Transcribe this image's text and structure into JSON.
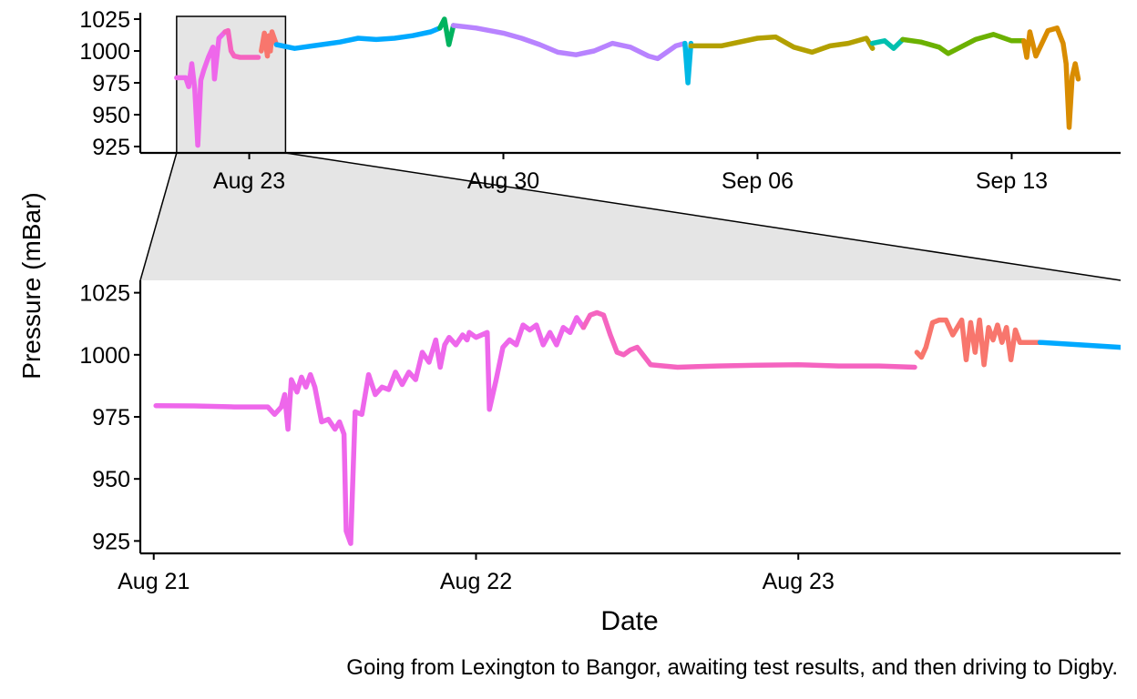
{
  "chart_data": {
    "type": "line",
    "ylabel": "Pressure (mBar)",
    "xlabel": "Date",
    "caption": "Going from Lexington to Bangor, awaiting test results, and then driving to Digby.",
    "grid": false,
    "legend": "none",
    "colors": {
      "magenta": "#EE67EB",
      "pink": "#F564C0",
      "salmon": "#F8766D",
      "skyblue": "#00A9FF",
      "green": "#00B35F",
      "lavender": "#B883FF",
      "cyan": "#00B8E5",
      "olive": "#B3A000",
      "teal": "#00C0AF",
      "lime": "#6BB100",
      "orange": "#D98C00",
      "zoombox": "#E5E5E5"
    },
    "overview": {
      "x_range": [
        "2024-08-20",
        "2024-09-16"
      ],
      "y_range": [
        920,
        1030
      ],
      "x_ticks": [
        {
          "date": "2024-08-23",
          "label": "Aug 23"
        },
        {
          "date": "2024-08-30",
          "label": "Aug 30"
        },
        {
          "date": "2024-09-06",
          "label": "Sep 06"
        },
        {
          "date": "2024-09-13",
          "label": "Sep 13"
        }
      ],
      "y_ticks": [
        925,
        950,
        975,
        1000,
        1025
      ],
      "zoom_range": [
        "2024-08-21",
        "2024-08-24"
      ],
      "series": [
        {
          "color": "magenta",
          "points": [
            [
              "2024-08-21 00:00",
              979
            ],
            [
              "2024-08-21 06:00",
              979
            ],
            [
              "2024-08-21 08:00",
              972
            ],
            [
              "2024-08-21 10:00",
              990
            ],
            [
              "2024-08-21 12:00",
              970
            ],
            [
              "2024-08-21 14:00",
              926
            ],
            [
              "2024-08-21 16:00",
              977
            ],
            [
              "2024-08-21 18:00",
              985
            ],
            [
              "2024-08-21 21:00",
              995
            ],
            [
              "2024-08-22 00:00",
              1003
            ],
            [
              "2024-08-22 01:00",
              978
            ],
            [
              "2024-08-22 04:00",
              1010
            ],
            [
              "2024-08-22 08:00",
              1015
            ]
          ]
        },
        {
          "color": "pink",
          "points": [
            [
              "2024-08-22 08:00",
              1015
            ],
            [
              "2024-08-22 10:00",
              1016
            ],
            [
              "2024-08-22 12:00",
              1000
            ],
            [
              "2024-08-22 14:00",
              996
            ],
            [
              "2024-08-22 18:00",
              995
            ],
            [
              "2024-08-23 00:00",
              995
            ],
            [
              "2024-08-23 06:00",
              995
            ]
          ]
        },
        {
          "color": "salmon",
          "points": [
            [
              "2024-08-23 08:00",
              1000
            ],
            [
              "2024-08-23 10:00",
              1014
            ],
            [
              "2024-08-23 12:00",
              996
            ],
            [
              "2024-08-23 13:00",
              1012
            ],
            [
              "2024-08-23 14:00",
              1000
            ],
            [
              "2024-08-23 15:00",
              1015
            ],
            [
              "2024-08-23 18:00",
              1005
            ]
          ]
        },
        {
          "color": "skyblue",
          "points": [
            [
              "2024-08-23 18:00",
              1005
            ],
            [
              "2024-08-24 06:00",
              1002
            ],
            [
              "2024-08-24 18:00",
              1004
            ],
            [
              "2024-08-25 12:00",
              1007
            ],
            [
              "2024-08-26 00:00",
              1010
            ],
            [
              "2024-08-26 12:00",
              1009
            ],
            [
              "2024-08-27 00:00",
              1010
            ],
            [
              "2024-08-27 12:00",
              1012
            ],
            [
              "2024-08-28 00:00",
              1015
            ],
            [
              "2024-08-28 06:00",
              1018
            ]
          ]
        },
        {
          "color": "green",
          "points": [
            [
              "2024-08-28 06:00",
              1018
            ],
            [
              "2024-08-28 09:00",
              1025
            ],
            [
              "2024-08-28 12:00",
              1005
            ],
            [
              "2024-08-28 15:00",
              1020
            ]
          ]
        },
        {
          "color": "lavender",
          "points": [
            [
              "2024-08-28 15:00",
              1020
            ],
            [
              "2024-08-29 06:00",
              1018
            ],
            [
              "2024-08-30 00:00",
              1014
            ],
            [
              "2024-08-30 12:00",
              1010
            ],
            [
              "2024-08-31 00:00",
              1005
            ],
            [
              "2024-08-31 12:00",
              999
            ],
            [
              "2024-09-01 00:00",
              997
            ],
            [
              "2024-09-01 12:00",
              1000
            ],
            [
              "2024-09-02 00:00",
              1006
            ],
            [
              "2024-09-02 12:00",
              1003
            ],
            [
              "2024-09-03 00:00",
              996
            ],
            [
              "2024-09-03 06:00",
              994
            ],
            [
              "2024-09-03 18:00",
              1004
            ],
            [
              "2024-09-04 00:00",
              1006
            ]
          ]
        },
        {
          "color": "cyan",
          "points": [
            [
              "2024-09-04 00:00",
              1006
            ],
            [
              "2024-09-04 02:00",
              975
            ],
            [
              "2024-09-04 04:00",
              1006
            ]
          ]
        },
        {
          "color": "olive",
          "points": [
            [
              "2024-09-04 04:00",
              1004
            ],
            [
              "2024-09-05 00:00",
              1004
            ],
            [
              "2024-09-06 00:00",
              1010
            ],
            [
              "2024-09-06 12:00",
              1011
            ],
            [
              "2024-09-07 00:00",
              1003
            ],
            [
              "2024-09-07 12:00",
              999
            ],
            [
              "2024-09-08 00:00",
              1004
            ],
            [
              "2024-09-08 12:00",
              1006
            ],
            [
              "2024-09-09 00:00",
              1010
            ],
            [
              "2024-09-09 04:00",
              1002
            ]
          ]
        },
        {
          "color": "teal",
          "points": [
            [
              "2024-09-09 04:00",
              1006
            ],
            [
              "2024-09-09 12:00",
              1008
            ],
            [
              "2024-09-09 18:00",
              1002
            ],
            [
              "2024-09-10 00:00",
              1009
            ]
          ]
        },
        {
          "color": "lime",
          "points": [
            [
              "2024-09-10 00:00",
              1009
            ],
            [
              "2024-09-10 12:00",
              1007
            ],
            [
              "2024-09-11 00:00",
              1003
            ],
            [
              "2024-09-11 06:00",
              998
            ],
            [
              "2024-09-12 00:00",
              1009
            ],
            [
              "2024-09-12 12:00",
              1013
            ],
            [
              "2024-09-13 00:00",
              1008
            ],
            [
              "2024-09-13 08:00",
              1008
            ]
          ]
        },
        {
          "color": "orange",
          "points": [
            [
              "2024-09-13 08:00",
              1008
            ],
            [
              "2024-09-13 10:00",
              995
            ],
            [
              "2024-09-13 12:00",
              1015
            ],
            [
              "2024-09-13 16:00",
              996
            ],
            [
              "2024-09-14 00:00",
              1016
            ],
            [
              "2024-09-14 06:00",
              1018
            ],
            [
              "2024-09-14 10:00",
              1006
            ],
            [
              "2024-09-14 12:00",
              990
            ],
            [
              "2024-09-14 14:00",
              940
            ],
            [
              "2024-09-14 16:00",
              980
            ],
            [
              "2024-09-14 18:00",
              990
            ],
            [
              "2024-09-14 20:00",
              978
            ]
          ]
        }
      ]
    },
    "detail": {
      "x_range": [
        "2024-08-20 23:00",
        "2024-08-24 00:00"
      ],
      "y_range": [
        920,
        1030
      ],
      "x_ticks": [
        {
          "date": "2024-08-21",
          "label": "Aug 21"
        },
        {
          "date": "2024-08-22",
          "label": "Aug 22"
        },
        {
          "date": "2024-08-23",
          "label": "Aug 23"
        }
      ],
      "y_ticks": [
        925,
        950,
        975,
        1000,
        1025
      ],
      "series": [
        {
          "color": "magenta",
          "points": [
            [
              "2024-08-21 00:10",
              979.5
            ],
            [
              "2024-08-21 03:00",
              979.4
            ],
            [
              "2024-08-21 06:00",
              979.0
            ],
            [
              "2024-08-21 08:30",
              979.0
            ],
            [
              "2024-08-21 09:00",
              976
            ],
            [
              "2024-08-21 09:30",
              979
            ],
            [
              "2024-08-21 09:45",
              984
            ],
            [
              "2024-08-21 10:00",
              970
            ],
            [
              "2024-08-21 10:15",
              990
            ],
            [
              "2024-08-21 10:40",
              985
            ],
            [
              "2024-08-21 11:00",
              991
            ],
            [
              "2024-08-21 11:20",
              987
            ],
            [
              "2024-08-21 11:40",
              992
            ],
            [
              "2024-08-21 12:00",
              987
            ],
            [
              "2024-08-21 12:30",
              973
            ],
            [
              "2024-08-21 13:00",
              974
            ],
            [
              "2024-08-21 13:30",
              970
            ],
            [
              "2024-08-21 13:50",
              973
            ],
            [
              "2024-08-21 14:10",
              968
            ],
            [
              "2024-08-21 14:20",
              929
            ],
            [
              "2024-08-21 14:40",
              924
            ],
            [
              "2024-08-21 15:00",
              977
            ],
            [
              "2024-08-21 15:30",
              976
            ],
            [
              "2024-08-21 16:00",
              992
            ],
            [
              "2024-08-21 16:30",
              984
            ],
            [
              "2024-08-21 17:00",
              987
            ],
            [
              "2024-08-21 17:30",
              986
            ],
            [
              "2024-08-21 18:00",
              993
            ],
            [
              "2024-08-21 18:30",
              988
            ],
            [
              "2024-08-21 19:00",
              993
            ],
            [
              "2024-08-21 19:30",
              990
            ],
            [
              "2024-08-21 20:00",
              1001
            ],
            [
              "2024-08-21 20:30",
              997
            ],
            [
              "2024-08-21 21:00",
              1006
            ],
            [
              "2024-08-21 21:20",
              995
            ],
            [
              "2024-08-21 21:40",
              1004
            ],
            [
              "2024-08-21 22:00",
              1007
            ],
            [
              "2024-08-21 22:30",
              1004
            ],
            [
              "2024-08-21 23:00",
              1008
            ],
            [
              "2024-08-21 23:20",
              1006
            ],
            [
              "2024-08-21 23:30",
              1009
            ],
            [
              "2024-08-22 00:00",
              1007
            ],
            [
              "2024-08-22 00:50",
              1009
            ],
            [
              "2024-08-22 01:00",
              978
            ],
            [
              "2024-08-22 01:30",
              990
            ],
            [
              "2024-08-22 02:00",
              1003
            ],
            [
              "2024-08-22 02:30",
              1006
            ],
            [
              "2024-08-22 03:00",
              1004
            ],
            [
              "2024-08-22 03:30",
              1012
            ],
            [
              "2024-08-22 04:00",
              1010
            ],
            [
              "2024-08-22 04:30",
              1012
            ],
            [
              "2024-08-22 05:00",
              1004
            ],
            [
              "2024-08-22 05:30",
              1009
            ],
            [
              "2024-08-22 06:00",
              1004
            ],
            [
              "2024-08-22 06:30",
              1011
            ],
            [
              "2024-08-22 07:00",
              1009
            ],
            [
              "2024-08-22 07:30",
              1015
            ],
            [
              "2024-08-22 08:00",
              1011
            ]
          ]
        },
        {
          "color": "pink",
          "points": [
            [
              "2024-08-22 08:00",
              1011
            ],
            [
              "2024-08-22 08:30",
              1016
            ],
            [
              "2024-08-22 09:00",
              1017
            ],
            [
              "2024-08-22 09:30",
              1016
            ],
            [
              "2024-08-22 10:00",
              1008
            ],
            [
              "2024-08-22 10:30",
              1001
            ],
            [
              "2024-08-22 11:00",
              1000
            ],
            [
              "2024-08-22 11:30",
              1002
            ],
            [
              "2024-08-22 12:00",
              1003
            ],
            [
              "2024-08-22 13:00",
              996
            ],
            [
              "2024-08-22 15:00",
              995
            ],
            [
              "2024-08-22 18:00",
              995.5
            ],
            [
              "2024-08-22 21:00",
              995.8
            ],
            [
              "2024-08-23 00:00",
              996
            ],
            [
              "2024-08-23 03:00",
              995.5
            ],
            [
              "2024-08-23 06:00",
              995.5
            ],
            [
              "2024-08-23 08:40",
              995
            ]
          ]
        },
        {
          "color": "salmon",
          "points": [
            [
              "2024-08-23 08:50",
              1001
            ],
            [
              "2024-08-23 09:10",
              999
            ],
            [
              "2024-08-23 09:30",
              1003
            ],
            [
              "2024-08-23 10:00",
              1013
            ],
            [
              "2024-08-23 10:30",
              1014
            ],
            [
              "2024-08-23 11:00",
              1014
            ],
            [
              "2024-08-23 11:30",
              1008
            ],
            [
              "2024-08-23 11:50",
              1011
            ],
            [
              "2024-08-23 12:10",
              1014
            ],
            [
              "2024-08-23 12:30",
              998
            ],
            [
              "2024-08-23 12:50",
              1013
            ],
            [
              "2024-08-23 13:10",
              1001
            ],
            [
              "2024-08-23 13:30",
              1014
            ],
            [
              "2024-08-23 13:50",
              996
            ],
            [
              "2024-08-23 14:10",
              1011
            ],
            [
              "2024-08-23 14:30",
              1006
            ],
            [
              "2024-08-23 14:50",
              1012
            ],
            [
              "2024-08-23 15:10",
              1005
            ],
            [
              "2024-08-23 15:30",
              1011
            ],
            [
              "2024-08-23 15:50",
              998
            ],
            [
              "2024-08-23 16:10",
              1010
            ],
            [
              "2024-08-23 16:30",
              1005
            ],
            [
              "2024-08-23 18:00",
              1005
            ]
          ]
        },
        {
          "color": "skyblue",
          "points": [
            [
              "2024-08-23 18:00",
              1005
            ],
            [
              "2024-08-23 21:00",
              1004
            ],
            [
              "2024-08-24 00:00",
              1003
            ]
          ]
        }
      ]
    }
  }
}
